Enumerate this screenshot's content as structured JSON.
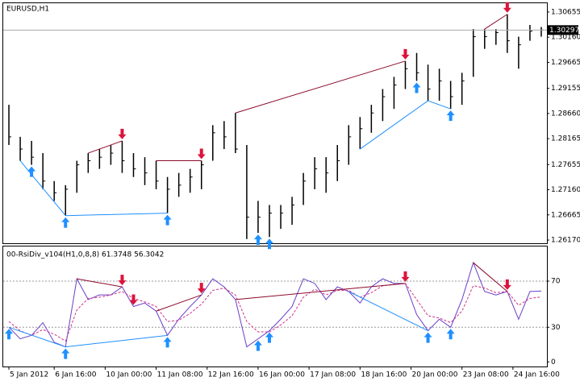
{
  "chart_data": [
    {
      "type": "hlc",
      "title": "EURUSD,H1",
      "color": "#000000",
      "high": [
        1.2883,
        1.282,
        1.2812,
        1.2788,
        1.2733,
        1.2725,
        1.2773,
        1.2788,
        1.2796,
        1.2804,
        1.2812,
        1.2788,
        1.278,
        1.2773,
        1.2741,
        1.2749,
        1.2757,
        1.2773,
        1.2843,
        1.2851,
        1.2867,
        1.2804,
        1.2694,
        1.2686,
        1.2686,
        1.2702,
        1.2749,
        1.278,
        1.278,
        1.2804,
        1.2843,
        1.2859,
        1.2883,
        1.2914,
        1.2938,
        1.2969,
        1.2985,
        1.2962,
        1.2954,
        1.293,
        1.2946,
        1.3032,
        1.3032,
        1.3032,
        1.3061,
        1.3017,
        1.304,
        1.3036
      ],
      "low": [
        1.2804,
        1.2773,
        1.2765,
        1.2717,
        1.2694,
        1.2665,
        1.271,
        1.2749,
        1.2757,
        1.2765,
        1.2749,
        1.2741,
        1.2725,
        1.2717,
        1.267,
        1.2702,
        1.271,
        1.2717,
        1.2773,
        1.2796,
        1.2788,
        1.2619,
        1.2631,
        1.2623,
        1.2639,
        1.2647,
        1.2686,
        1.2717,
        1.271,
        1.2733,
        1.2765,
        1.2796,
        1.2828,
        1.2851,
        1.2875,
        1.2914,
        1.293,
        1.2891,
        1.2891,
        1.2875,
        1.2883,
        1.2938,
        1.2993,
        1.3001,
        1.2985,
        1.2954,
        1.3009,
        1.3017
      ],
      "close": [
        1.282,
        1.2796,
        1.278,
        1.2733,
        1.271,
        1.2717,
        1.2765,
        1.2773,
        1.278,
        1.2788,
        1.2773,
        1.2757,
        1.2749,
        1.2733,
        1.2717,
        1.2725,
        1.2741,
        1.2765,
        1.2828,
        1.282,
        1.2796,
        1.2662,
        1.2662,
        1.267,
        1.267,
        1.2686,
        1.2733,
        1.2757,
        1.2749,
        1.2773,
        1.282,
        1.2836,
        1.2867,
        1.2899,
        1.2922,
        1.2954,
        1.2946,
        1.2914,
        1.293,
        1.2899,
        1.293,
        1.3017,
        1.3017,
        1.3025,
        1.3009,
        1.3001,
        1.3028,
        1.303
      ],
      "last_price": {
        "value": 1.303,
        "label": "1.30297"
      },
      "ylim": [
        1.26107,
        1.30828
      ],
      "yticks": [
        1.30655,
        {
          "value": 1.3016,
          "label": "1.30160"
        },
        1.29665,
        1.29155,
        {
          "value": 1.2866,
          "label": "1.28660"
        },
        1.28165,
        1.27655,
        {
          "value": 1.2716,
          "label": "1.27160"
        },
        1.26665,
        {
          "value": 1.2617,
          "label": "1.26170"
        }
      ],
      "up_arrows": [
        2,
        5,
        14,
        22,
        23,
        36,
        39
      ],
      "up_color": "#1e90ff",
      "down_arrows": [
        10,
        17,
        35,
        44
      ],
      "down_color": "#dc143c",
      "divergences": [
        {
          "from": 1,
          "to": 5,
          "color": "#1e90ff"
        },
        {
          "from": 5,
          "to": 14,
          "color": "#1e90ff"
        },
        {
          "from": 31,
          "to": 37,
          "color": "#1e90ff"
        },
        {
          "from": 37,
          "to": 39,
          "color": "#1e90ff"
        },
        {
          "from": 7,
          "to": 10,
          "color": "#8b0a2a"
        },
        {
          "from": 13,
          "to": 17,
          "color": "#8b0a2a"
        },
        {
          "from": 20,
          "to": 35,
          "color": "#8b0a2a"
        },
        {
          "from": 42,
          "to": 44,
          "color": "#8b0a2a"
        }
      ]
    },
    {
      "type": "line",
      "title": "00-RsiDiv_v104(H1,0,8,8) 61.3748 56.3042",
      "series": [
        {
          "color": "#6a3fc8",
          "dashed": false,
          "values": [
            30,
            20,
            23,
            34,
            17,
            13,
            72,
            54,
            58,
            58,
            65,
            48,
            51,
            44,
            23,
            37,
            48,
            58,
            72,
            65,
            54,
            13,
            20,
            27,
            37,
            48,
            72,
            68,
            54,
            65,
            61,
            51,
            65,
            72,
            68,
            68,
            41,
            27,
            37,
            30,
            54,
            86,
            61,
            58,
            61,
            37,
            61,
            61.3748
          ]
        },
        {
          "color": "#d0308a",
          "dashed": true,
          "values": [
            35,
            27,
            23,
            28,
            24,
            18,
            45,
            55,
            56,
            58,
            61,
            55,
            52,
            48,
            35,
            36,
            42,
            50,
            62,
            64,
            58,
            35,
            26,
            26,
            32,
            40,
            56,
            63,
            58,
            62,
            62,
            56,
            60,
            66,
            67,
            68,
            54,
            40,
            38,
            34,
            44,
            66,
            64,
            60,
            61,
            49,
            55,
            56.3042
          ]
        }
      ],
      "ylim": [
        -4,
        100
      ],
      "yticks": [
        0,
        30,
        70
      ],
      "grid_levels": [
        30,
        70
      ],
      "up_arrows": [
        0,
        5,
        14,
        22,
        23,
        37,
        39
      ],
      "up_color": "#1e90ff",
      "down_arrows": [
        10,
        11,
        17,
        35,
        44
      ],
      "down_color": "#dc143c",
      "divergences": [
        {
          "from": 0,
          "to": 5,
          "color": "#1e90ff"
        },
        {
          "from": 5,
          "to": 14,
          "color": "#1e90ff"
        },
        {
          "from": 30,
          "to": 37,
          "color": "#1e90ff"
        },
        {
          "from": 6,
          "to": 10,
          "color": "#8b0a2a"
        },
        {
          "from": 13,
          "to": 17,
          "color": "#8b0a2a"
        },
        {
          "from": 20,
          "to": 35,
          "color": "#8b0a2a"
        },
        {
          "from": 41,
          "to": 44,
          "color": "#8b0a2a"
        }
      ],
      "xticks": [
        {
          "value": 0,
          "label": "5 Jan 2012"
        },
        {
          "value": 4,
          "label": "6 Jan 16:00"
        },
        {
          "value": 8.5,
          "label": "10 Jan 00:00"
        },
        {
          "value": 13,
          "label": "11 Jan 08:00"
        },
        {
          "value": 17.5,
          "label": "12 Jan 16:00"
        },
        {
          "value": 22,
          "label": "16 Jan 00:00"
        },
        {
          "value": 26.5,
          "label": "17 Jan 08:00"
        },
        {
          "value": 31,
          "label": "18 Jan 16:00"
        },
        {
          "value": 35.5,
          "label": "20 Jan 00:00"
        },
        {
          "value": 40,
          "label": "23 Jan 08:00"
        },
        {
          "value": 44.5,
          "label": "24 Jan 16:00"
        }
      ]
    }
  ]
}
